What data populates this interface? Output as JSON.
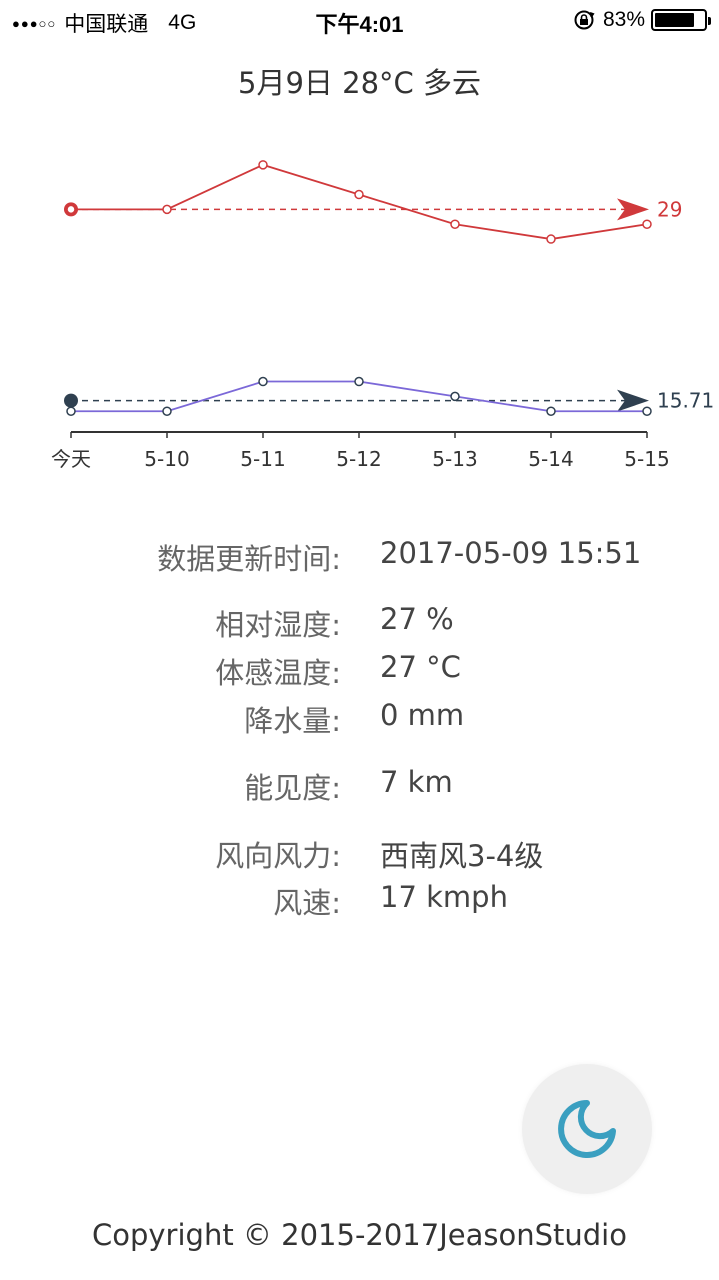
{
  "status_bar": {
    "signal": "●●●○○",
    "carrier": "中国联通",
    "network": "4G",
    "time": "下午4:01",
    "battery_percent": "83%",
    "battery_level": 0.83,
    "icons": [
      "rotation-lock-icon",
      "battery-icon"
    ]
  },
  "header": {
    "title": "5月9日 28°C 多云"
  },
  "chart_data": {
    "type": "line",
    "categories": [
      "今天",
      "5-10",
      "5-11",
      "5-12",
      "5-13",
      "5-14",
      "5-15"
    ],
    "ylim": [
      14,
      33
    ],
    "grid": false,
    "series": [
      {
        "values": [
          29,
          29,
          32,
          30,
          28,
          27,
          28
        ],
        "color": "#d0393b",
        "average_label": "29"
      },
      {
        "values": [
          15.4,
          15.4,
          17.4,
          17.4,
          16.4,
          15.4,
          15.4
        ],
        "color": "#7b68d8",
        "average_label": "15.71"
      }
    ],
    "average_colors": [
      "#d0393b",
      "#2f4050"
    ]
  },
  "details": [
    {
      "label": "数据更新时间:",
      "value": "2017-05-09 15:51"
    },
    {
      "label": "相对湿度:",
      "value": "27 %"
    },
    {
      "label": "体感温度:",
      "value": "27 °C"
    },
    {
      "label": "降水量:",
      "value": "0 mm"
    },
    {
      "label": "能见度:",
      "value": "7 km"
    },
    {
      "label": "风向风力:",
      "value": "西南风3-4级"
    },
    {
      "label": "风速:",
      "value": "17 kmph"
    }
  ],
  "theme_toggle": {
    "icon": "moon-icon",
    "accent_color": "#3a9fc0"
  },
  "footer": {
    "copyright": "Copyright © 2015-2017JeasonStudio"
  }
}
